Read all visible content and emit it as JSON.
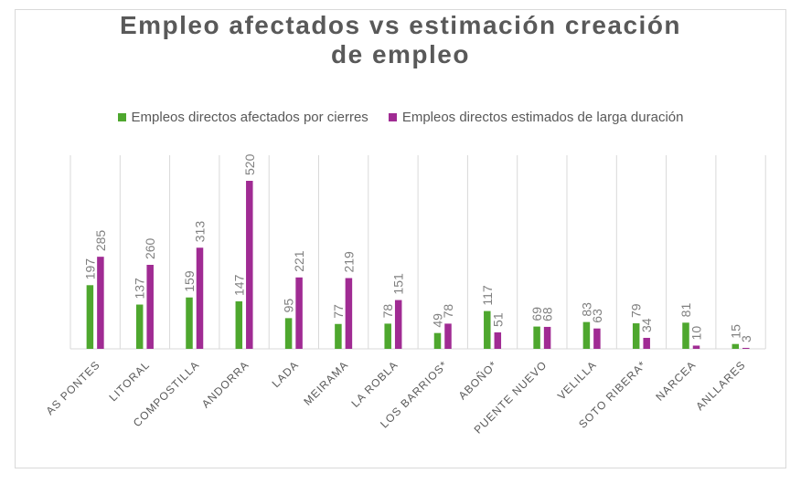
{
  "chart_data": {
    "type": "bar",
    "title_line1": "Empleo afectados vs estimación creación",
    "title_line2": "de empleo",
    "categories": [
      "AS PONTES",
      "LITORAL",
      "COMPOSTILLA",
      "ANDORRA",
      "LADA",
      "MEIRAMA",
      "LA ROBLA",
      "LOS BARRIOS*",
      "ABOÑO*",
      "PUENTE NUEVO",
      "VELILLA",
      "SOTO RIBERA*",
      "NARCEA",
      "ANLLARES"
    ],
    "series": [
      {
        "name": "Empleos directos afectados por cierres",
        "color": "#4ea72e",
        "values": [
          197,
          137,
          159,
          147,
          95,
          77,
          78,
          49,
          117,
          69,
          83,
          79,
          81,
          15
        ]
      },
      {
        "name": "Empleos directos estimados de larga duración",
        "color": "#a02b93",
        "values": [
          285,
          260,
          313,
          520,
          221,
          219,
          151,
          78,
          51,
          68,
          63,
          34,
          10,
          3
        ]
      }
    ],
    "ylim": [
      0,
      520
    ],
    "legend_position": "top",
    "grid": "vertical category separators"
  }
}
